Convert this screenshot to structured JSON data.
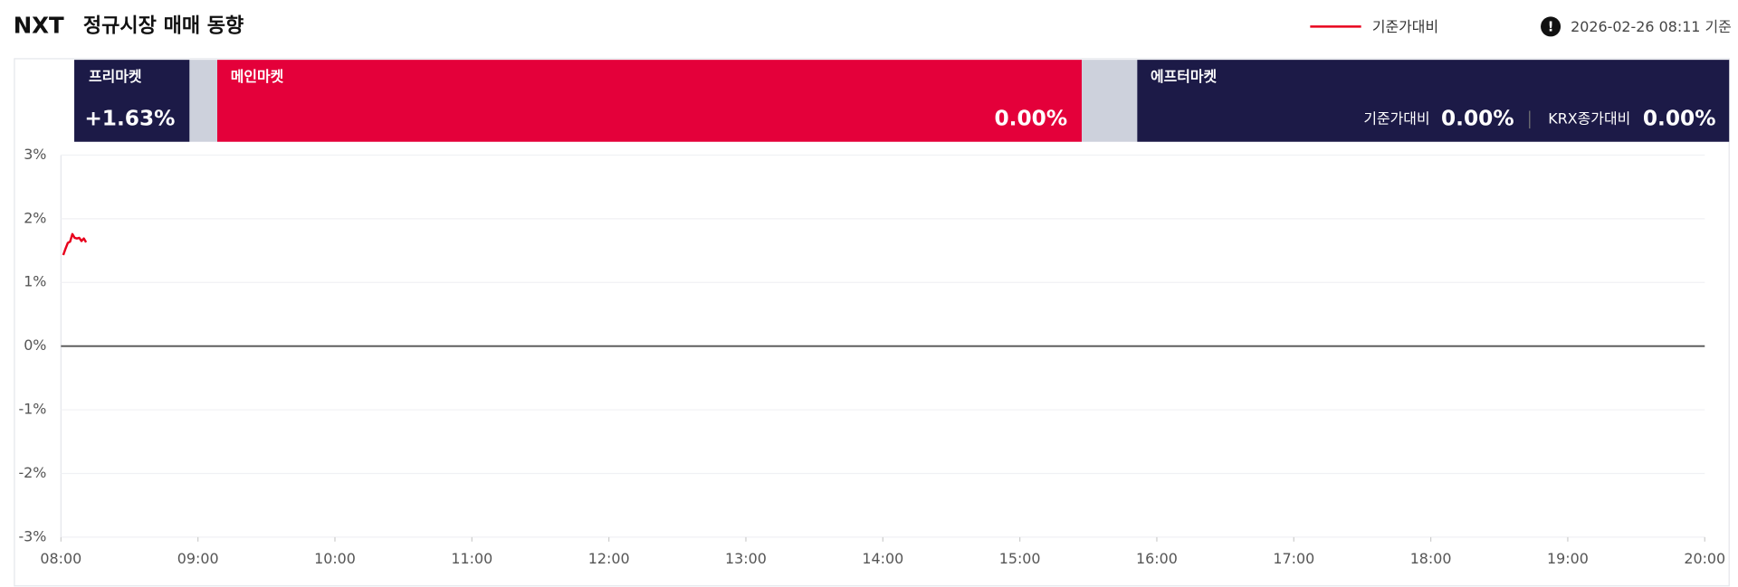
{
  "header": {
    "logo": "NXT",
    "title": "정규시장 매매 동향",
    "timestamp": "2026-02-26 08:11 기준"
  },
  "markets": {
    "pre": {
      "label": "프리마켓",
      "value": "+1.63%"
    },
    "main": {
      "label": "메인마켓",
      "value": "0.00%"
    },
    "after": {
      "label": "에프터마켓",
      "items": [
        {
          "label": "기준가대비",
          "value": "0.00%"
        },
        {
          "label": "KRX종가대비",
          "value": "0.00%"
        }
      ]
    }
  },
  "chart_data": {
    "type": "line",
    "x": [
      "08:01",
      "08:02",
      "08:03",
      "08:04",
      "08:05",
      "08:06",
      "08:07",
      "08:08",
      "08:09",
      "08:10",
      "08:11"
    ],
    "series": [
      {
        "name": "기준가대비",
        "color": "#e8001c",
        "values": [
          1.43,
          1.53,
          1.62,
          1.64,
          1.76,
          1.7,
          1.69,
          1.7,
          1.65,
          1.69,
          1.63
        ]
      }
    ],
    "xlim": [
      "08:00",
      "20:00"
    ],
    "xticks": [
      "08:00",
      "09:00",
      "10:00",
      "11:00",
      "12:00",
      "13:00",
      "14:00",
      "15:00",
      "16:00",
      "17:00",
      "18:00",
      "19:00",
      "20:00"
    ],
    "ylim": [
      -3,
      3
    ],
    "yticks": [
      {
        "value": -3,
        "label": "-3%"
      },
      {
        "value": -2,
        "label": "-2%"
      },
      {
        "value": -1,
        "label": "-1%"
      },
      {
        "value": 0,
        "label": "0%"
      },
      {
        "value": 1,
        "label": "1%"
      },
      {
        "value": 2,
        "label": "2%"
      },
      {
        "value": 3,
        "label": "3%"
      }
    ],
    "grid": true
  }
}
